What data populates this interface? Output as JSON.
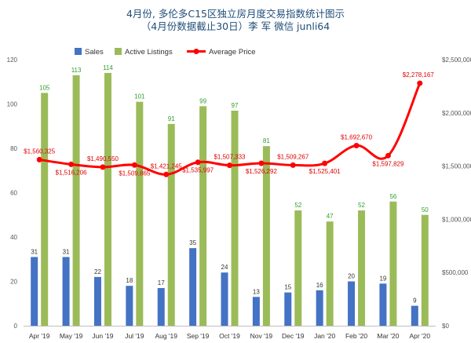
{
  "chart_data": {
    "type": "bar",
    "title_line1": "4月份, 多伦多C15区独立房月度交易指数统计图示",
    "title_line2": "（4月份数据截止30日）李 军  微信 junli64",
    "categories": [
      "Apr '19",
      "May '19",
      "Jun '19",
      "Jul '19",
      "Aug '19",
      "Sep '19",
      "Oct '19",
      "Nov '19",
      "Dec '19",
      "Jan '20",
      "Feb '20",
      "Mar '20",
      "Apr '20"
    ],
    "series": [
      {
        "name": "Sales",
        "axis": "left",
        "color": "#4472c4",
        "values": [
          31,
          31,
          22,
          18,
          17,
          35,
          24,
          13,
          15,
          16,
          20,
          19,
          9
        ],
        "labels": [
          "31",
          "31",
          "22",
          "18",
          "17",
          "35",
          "24",
          "13",
          "15",
          "16",
          "20",
          "19",
          "9"
        ]
      },
      {
        "name": "Active Listings",
        "axis": "left",
        "color": "#9bbb59",
        "values": [
          105,
          113,
          114,
          101,
          91,
          99,
          97,
          81,
          52,
          47,
          52,
          56,
          50
        ],
        "labels": [
          "105",
          "113",
          "114",
          "101",
          "91",
          "99",
          "97",
          "81",
          "52",
          "47",
          "52",
          "56",
          "50"
        ]
      },
      {
        "name": "Average Price",
        "axis": "right",
        "type": "line",
        "color": "#ff0000",
        "values": [
          1560325,
          1516206,
          1490550,
          1509865,
          1421245,
          1535997,
          1507333,
          1526292,
          1509267,
          1525401,
          1692670,
          1597829,
          2278167
        ],
        "labels": [
          "$1,560,325",
          "$1,516,206",
          "$1,490,550",
          "$1,509,865",
          "$1,421,245",
          "$1,535,997",
          "$1,507,333",
          "$1,526,292",
          "$1,509,267",
          "$1,525,401",
          "$1,692,670",
          "$1,597,829",
          "$2,278,167"
        ]
      }
    ],
    "left_axis": {
      "ylim": [
        0,
        120
      ],
      "ticks": [
        "0",
        "20",
        "40",
        "60",
        "80",
        "100",
        "120"
      ]
    },
    "right_axis": {
      "ylim": [
        0,
        2500000
      ],
      "ticks": [
        "$0",
        "$500,000",
        "$1,000,000",
        "$1,500,000",
        "$2,000,000",
        "$2,500,000"
      ]
    },
    "legend_position": "top-center",
    "grid": false
  }
}
